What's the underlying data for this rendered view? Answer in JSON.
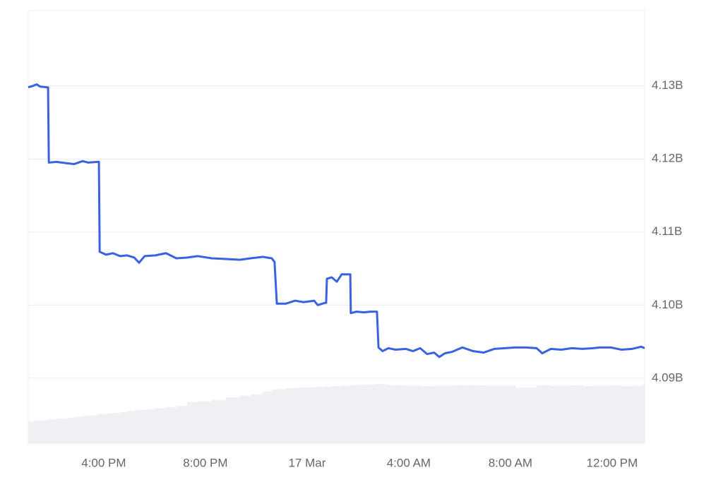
{
  "chart_data": {
    "type": "line",
    "x": [
      13.03,
      13.22,
      13.36,
      13.5,
      13.78,
      13.81,
      13.84,
      14.14,
      14.56,
      14.84,
      15.17,
      15.39,
      15.75,
      15.81,
      15.84,
      16.09,
      16.36,
      16.64,
      16.92,
      17.2,
      17.39,
      17.61,
      18.03,
      18.45,
      18.86,
      19.28,
      19.7,
      20.25,
      20.81,
      21.36,
      21.78,
      22.25,
      22.61,
      22.72,
      22.81,
      23.17,
      23.53,
      23.86,
      24.28,
      24.42,
      24.7,
      24.75,
      24.78,
      24.97,
      25.17,
      25.36,
      25.64,
      25.7,
      25.72,
      25.95,
      26.22,
      26.5,
      26.75,
      26.81,
      26.97,
      27.2,
      27.47,
      27.89,
      28.17,
      28.45,
      28.72,
      29.0,
      29.2,
      29.42,
      29.7,
      30.11,
      30.53,
      30.95,
      31.36,
      31.78,
      32.2,
      32.61,
      33.03,
      33.25,
      33.59,
      34.0,
      34.42,
      34.84,
      35.25,
      35.53,
      35.95,
      36.36,
      36.78,
      37.14,
      37.28
    ],
    "series": [
      {
        "type": "line",
        "color": "#3a62e0",
        "values": [
          4.1298,
          4.13,
          4.1302,
          4.1299,
          4.1298,
          4.1298,
          4.1195,
          4.1196,
          4.1194,
          4.1193,
          4.1197,
          4.1195,
          4.1196,
          4.1196,
          4.1073,
          4.1069,
          4.1071,
          4.1067,
          4.1068,
          4.1065,
          4.1058,
          4.1067,
          4.1068,
          4.1071,
          4.1064,
          4.1065,
          4.1067,
          4.1064,
          4.1063,
          4.1062,
          4.1064,
          4.1066,
          4.1064,
          4.1059,
          4.1002,
          4.1002,
          4.1006,
          4.1004,
          4.1006,
          4.1,
          4.1003,
          4.1003,
          4.1036,
          4.1038,
          4.1032,
          4.1042,
          4.1042,
          4.1042,
          4.0989,
          4.0991,
          4.099,
          4.0991,
          4.0991,
          4.0942,
          4.0937,
          4.0941,
          4.0939,
          4.094,
          4.0937,
          4.0941,
          4.0933,
          4.0935,
          4.0929,
          4.0934,
          4.0936,
          4.0942,
          4.0937,
          4.0935,
          4.094,
          4.0941,
          4.0942,
          4.0942,
          4.0941,
          4.0934,
          4.094,
          4.0939,
          4.0941,
          4.094,
          4.0941,
          4.0942,
          4.0942,
          4.0939,
          4.094,
          4.0943,
          4.0941
        ]
      },
      {
        "type": "bar",
        "axis": "y2",
        "color": "#eef0f3",
        "values": [
          5.0,
          5.1,
          5.2,
          5.3,
          5.5,
          5.5,
          5.5,
          5.7,
          5.9,
          6.1,
          6.3,
          6.4,
          6.7,
          6.7,
          6.7,
          6.9,
          7.0,
          7.2,
          7.4,
          7.6,
          7.7,
          7.8,
          8.1,
          8.3,
          8.6,
          9.5,
          9.7,
          10.0,
          10.6,
          11.0,
          11.3,
          12.0,
          12.3,
          12.4,
          12.5,
          12.7,
          12.8,
          12.9,
          13.0,
          13.0,
          13.1,
          13.1,
          13.1,
          13.2,
          13.2,
          13.3,
          13.4,
          13.4,
          13.4,
          13.5,
          13.5,
          13.6,
          13.7,
          13.7,
          13.6,
          13.4,
          13.4,
          13.3,
          13.3,
          13.2,
          13.2,
          13.3,
          13.3,
          13.3,
          13.4,
          13.4,
          13.4,
          13.3,
          13.3,
          13.3,
          12.8,
          12.8,
          13.4,
          13.4,
          13.3,
          13.3,
          13.4,
          13.2,
          13.3,
          13.3,
          13.4,
          13.2,
          13.3,
          13.5,
          13.5
        ]
      }
    ],
    "xlim": [
      13.03,
      37.28
    ],
    "xticks": [
      {
        "value": 16,
        "label": "4:00 PM"
      },
      {
        "value": 20,
        "label": "8:00 PM"
      },
      {
        "value": 24,
        "label": "17 Mar"
      },
      {
        "value": 28,
        "label": "4:00 AM"
      },
      {
        "value": 32,
        "label": "8:00 AM"
      },
      {
        "value": 36,
        "label": "12:00 PM"
      }
    ],
    "ylim": [
      4.0811,
      4.1403
    ],
    "yticks": [
      {
        "value": 4.09,
        "label": "4.09B"
      },
      {
        "value": 4.1,
        "label": "4.10B"
      },
      {
        "value": 4.11,
        "label": "4.11B"
      },
      {
        "value": 4.12,
        "label": "4.12B"
      },
      {
        "value": 4.13,
        "label": "4.13B"
      }
    ],
    "y2lim": [
      0,
      100
    ],
    "grid": true
  }
}
